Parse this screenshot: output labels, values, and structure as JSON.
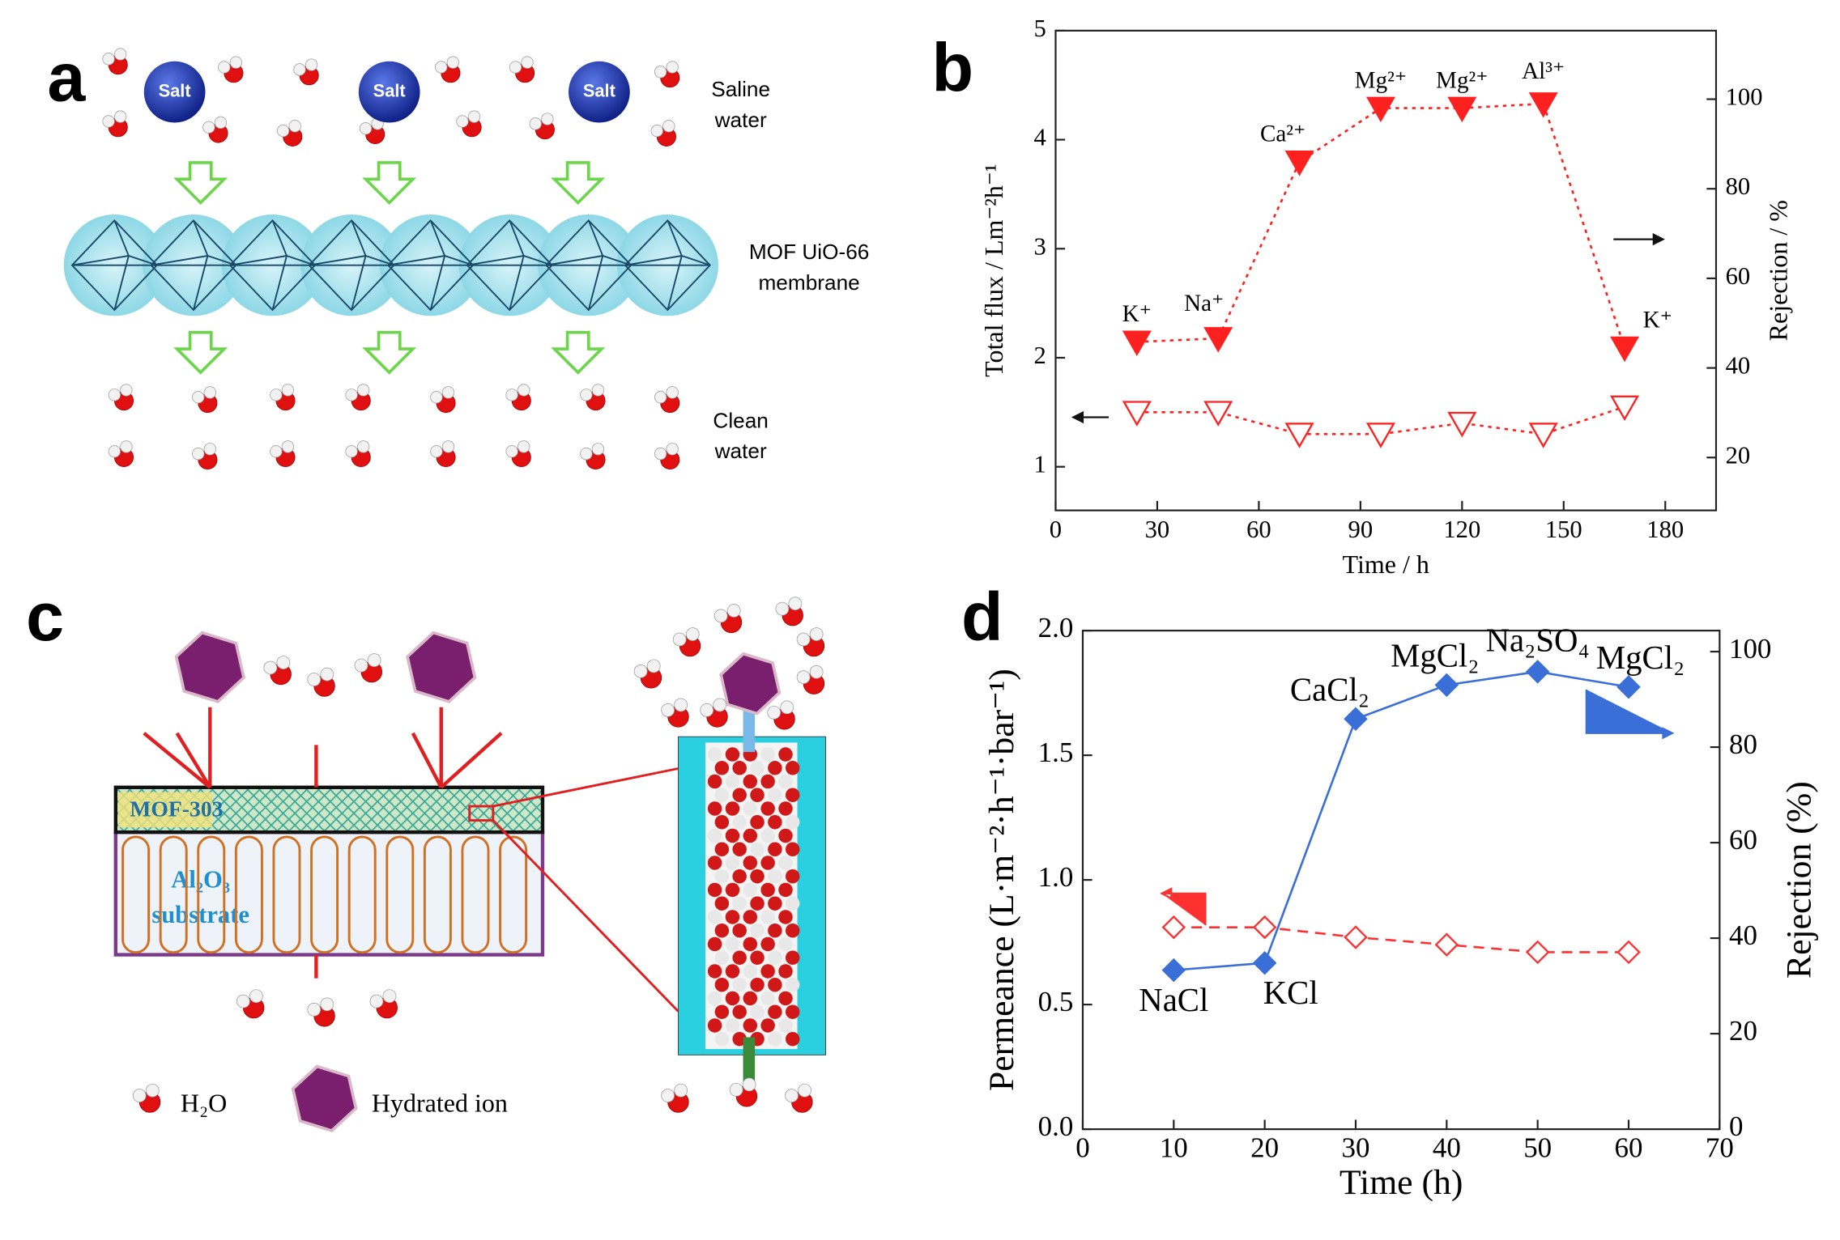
{
  "panels": [
    "a",
    "b",
    "c",
    "d"
  ],
  "diagram_a": {
    "salt": [
      "Salt",
      "Salt",
      "Salt"
    ],
    "feed": [
      "Saline",
      "water"
    ],
    "membrane": [
      "MOF UiO-66",
      "membrane"
    ],
    "permeate": [
      "Clean",
      "water"
    ]
  },
  "diagram_c": {
    "layer": "MOF-303",
    "substrate": [
      "Al₂O₃",
      "substrate"
    ],
    "legend": [
      "H₂O",
      "Hydrated ion"
    ]
  },
  "chart_data": [
    {
      "type": "line",
      "xlabel": "Time / h",
      "ylabel": "Total flux / Lm⁻²h⁻¹",
      "y2label": "Rejection / %",
      "xlim": [
        0,
        195
      ],
      "xticks": [
        0,
        30,
        60,
        90,
        120,
        150,
        180
      ],
      "ylim": [
        0.6,
        5
      ],
      "yticks": [
        1,
        2,
        3,
        4,
        5
      ],
      "y2lim": [
        8.2,
        115.3
      ],
      "y2ticks": [
        20,
        40,
        60,
        80,
        100
      ],
      "x": [
        24,
        48,
        72,
        96,
        120,
        144,
        168
      ],
      "series": [
        {
          "color": "#ff2020",
          "marker": "triangle-down",
          "filled": false,
          "dash": "dotted",
          "values": [
            1.5,
            1.5,
            1.3,
            1.3,
            1.4,
            1.3,
            1.55
          ]
        },
        {
          "color": "#ff2020",
          "marker": "triangle-down",
          "filled": true,
          "dash": "dotted",
          "axis": "y2",
          "values": [
            45.8,
            46.6,
            86,
            98,
            98,
            99,
            44.5
          ],
          "labels": [
            "K⁺",
            "Na⁺",
            "Ca²⁺",
            "Mg²⁺",
            "Mg²⁺",
            "Al³⁺",
            "K⁺"
          ]
        }
      ]
    },
    {
      "type": "line",
      "xlabel": "Time (h)",
      "ylabel": "Permeance (L·m⁻²·h⁻¹·bar⁻¹)",
      "y2label": "Rejection (%)",
      "xlim": [
        0,
        70
      ],
      "xticks": [
        0,
        10,
        20,
        30,
        40,
        50,
        60,
        70
      ],
      "ylim": [
        0,
        2
      ],
      "yticks": [
        {
          "value": 0,
          "label": "0.0"
        },
        0.5,
        {
          "value": 1,
          "label": "1.0"
        },
        1.5,
        {
          "value": 2,
          "label": "2.0"
        }
      ],
      "y2lim": [
        0,
        104.4
      ],
      "y2ticks": [
        0,
        20,
        40,
        60,
        80,
        100
      ],
      "x": [
        10,
        20,
        30,
        40,
        50,
        60
      ],
      "series": [
        {
          "color": "#ff3030",
          "marker": "diamond",
          "filled": false,
          "dash": "dashed",
          "values": [
            0.81,
            0.81,
            0.77,
            0.74,
            0.71,
            0.71
          ]
        },
        {
          "color": "#3b6fd8",
          "marker": "diamond",
          "filled": true,
          "dash": "solid",
          "axis": "y2",
          "values": [
            33.3,
            34.8,
            85.9,
            93,
            95.8,
            92.6
          ],
          "labels": [
            "NaCl",
            "KCl",
            "CaCl₂",
            "MgCl₂",
            "Na₂SO₄",
            "MgCl₂"
          ]
        }
      ]
    }
  ]
}
